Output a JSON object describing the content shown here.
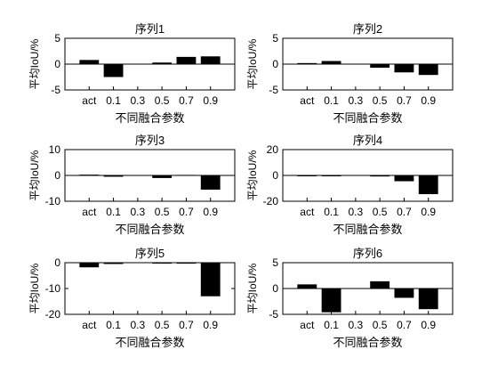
{
  "chart_data": [
    {
      "type": "bar",
      "title": "序列1",
      "xlabel": "不同融合参数",
      "ylabel": "平均IoU/%",
      "categories": [
        "act",
        "0.1",
        "0.3",
        "0.5",
        "0.7",
        "0.9"
      ],
      "values": [
        0.8,
        -2.5,
        0.0,
        0.3,
        1.4,
        1.5
      ],
      "ylim": [
        -5,
        5
      ],
      "yticks": [
        -5,
        0,
        5
      ],
      "grid": false,
      "color": "#000000"
    },
    {
      "type": "bar",
      "title": "序列2",
      "xlabel": "不同融合参数",
      "ylabel": "平均IoU/%",
      "categories": [
        "act",
        "0.1",
        "0.3",
        "0.5",
        "0.7",
        "0.9"
      ],
      "values": [
        0.2,
        0.6,
        0.0,
        -0.7,
        -1.6,
        -2.1
      ],
      "ylim": [
        -5,
        5
      ],
      "yticks": [
        -5,
        0,
        5
      ],
      "grid": false,
      "color": "#000000"
    },
    {
      "type": "bar",
      "title": "序列3",
      "xlabel": "不同融合参数",
      "ylabel": "平均IoU/%",
      "categories": [
        "act",
        "0.1",
        "0.3",
        "0.5",
        "0.7",
        "0.9"
      ],
      "values": [
        0.3,
        -0.5,
        0.0,
        -1.0,
        0.2,
        -5.5
      ],
      "ylim": [
        -10,
        10
      ],
      "yticks": [
        -10,
        0,
        10
      ],
      "grid": false,
      "color": "#000000"
    },
    {
      "type": "bar",
      "title": "序列4",
      "xlabel": "不同融合参数",
      "ylabel": "平均IoU/%",
      "categories": [
        "act",
        "0.1",
        "0.3",
        "0.5",
        "0.7",
        "0.9"
      ],
      "values": [
        -0.3,
        -0.3,
        0.0,
        -0.8,
        -4.5,
        -14.5
      ],
      "ylim": [
        -20,
        20
      ],
      "yticks": [
        -20,
        0,
        20
      ],
      "grid": false,
      "color": "#000000"
    },
    {
      "type": "bar",
      "title": "序列5",
      "xlabel": "不同融合参数",
      "ylabel": "平均IoU/%",
      "categories": [
        "act",
        "0.1",
        "0.3",
        "0.5",
        "0.7",
        "0.9"
      ],
      "values": [
        -1.8,
        -0.5,
        0.0,
        -0.2,
        -0.2,
        -13.0
      ],
      "ylim": [
        -20,
        0
      ],
      "yticks": [
        -20,
        -10,
        0
      ],
      "grid": false,
      "color": "#000000"
    },
    {
      "type": "bar",
      "title": "序列6",
      "xlabel": "不同融合参数",
      "ylabel": "平均IoU/%",
      "categories": [
        "act",
        "0.1",
        "0.3",
        "0.5",
        "0.7",
        "0.9"
      ],
      "values": [
        0.8,
        -4.6,
        0.0,
        1.4,
        -1.8,
        -4.0
      ],
      "ylim": [
        -5,
        5
      ],
      "yticks": [
        -5,
        0,
        5
      ],
      "grid": false,
      "color": "#000000"
    }
  ]
}
